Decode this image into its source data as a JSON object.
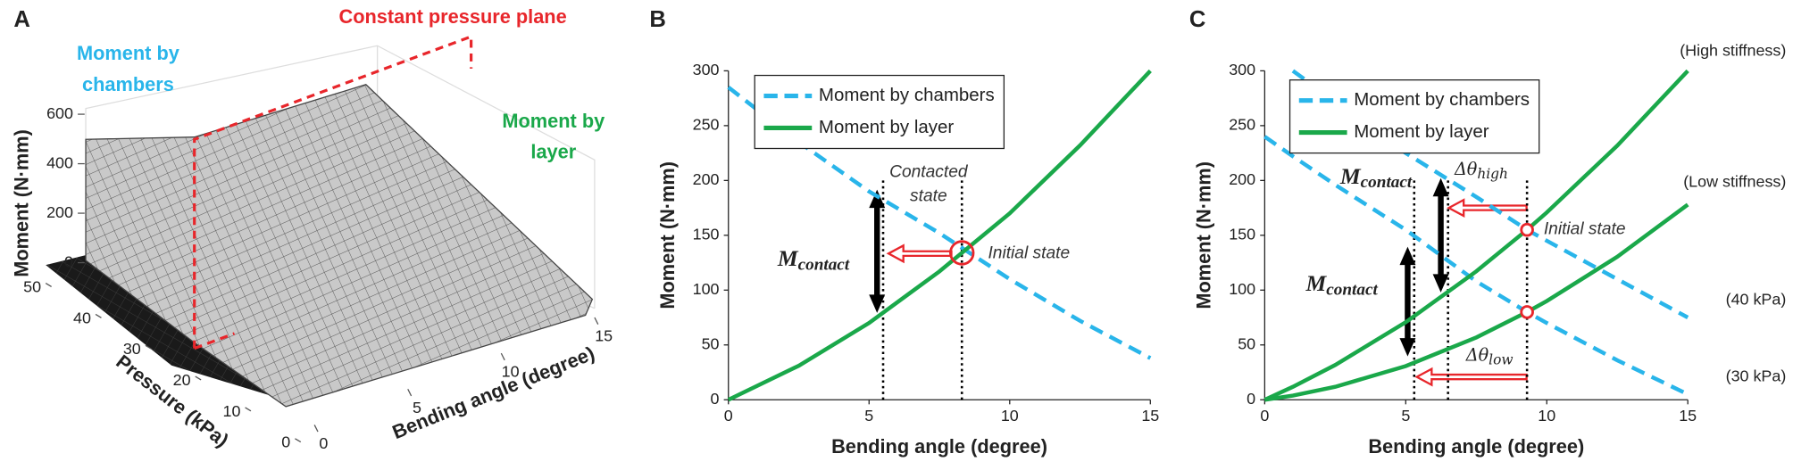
{
  "chart_data": [
    {
      "type": "surface3d",
      "panel": "A",
      "xlabel": "Bending angle (degree)",
      "ylabel": "Pressure (kPa)",
      "zlabel": "Moment (N·mm)",
      "xlim": [
        0,
        15
      ],
      "xticks": [
        0,
        5,
        10,
        15
      ],
      "ylim": [
        0,
        50
      ],
      "yticks": [
        0,
        10,
        20,
        30,
        40,
        50
      ],
      "zlim": [
        0,
        600
      ],
      "zticks": [
        0,
        200,
        400,
        600
      ],
      "annotations": [
        {
          "lines": [
            "Constant pressure plane"
          ],
          "color": "#e8262b"
        },
        {
          "lines": [
            "Moment by",
            "chambers"
          ],
          "color": "#29b5ea"
        },
        {
          "lines": [
            "Moment by",
            "layer"
          ],
          "color": "#1aa84a"
        }
      ]
    },
    {
      "type": "line",
      "panel": "B",
      "xlabel": "Bending angle (degree)",
      "ylabel": "Moment (N·mm)",
      "x": [
        0,
        2.5,
        5,
        7.5,
        10,
        12.5,
        15
      ],
      "xlim": [
        0,
        15
      ],
      "xticks": [
        0,
        5,
        10,
        15
      ],
      "ylim": [
        0,
        300
      ],
      "yticks": [
        0,
        50,
        100,
        150,
        200,
        250,
        300
      ],
      "series": [
        {
          "name": "Moment by chambers",
          "color": "#29b5ea",
          "dashed": true,
          "values": [
            285,
            235,
            190,
            152,
            110,
            72,
            38
          ]
        },
        {
          "name": "Moment by layer",
          "color": "#1aa84a",
          "dashed": false,
          "values": [
            0,
            31,
            70,
            117,
            170,
            232,
            300
          ]
        }
      ],
      "reference_x": [
        5.5,
        8.3
      ],
      "markers": [
        {
          "x": 8.3,
          "y": 134
        }
      ],
      "annotations": [
        "Contacted",
        "state",
        "Initial state"
      ],
      "math_labels": [
        {
          "symbol": "M",
          "subscript": "contact"
        }
      ]
    },
    {
      "type": "line",
      "panel": "C",
      "xlabel": "Bending angle (degree)",
      "ylabel": "Moment (N·mm)",
      "x": [
        0,
        1,
        2.5,
        5,
        7.5,
        9.3,
        10,
        12.5,
        15
      ],
      "xlim": [
        0,
        15
      ],
      "xticks": [
        0,
        5,
        10,
        15
      ],
      "ylim": [
        0,
        300
      ],
      "yticks": [
        0,
        50,
        100,
        150,
        200,
        250,
        300
      ],
      "series": [
        {
          "name": "Moment by chambers",
          "label": "(40 kPa)",
          "color": "#29b5ea",
          "dashed": true,
          "values": [
            null,
            300,
            272,
            225,
            185,
            155,
            145,
            110,
            75
          ]
        },
        {
          "name": "Moment by chambers",
          "label": "(30 kPa)",
          "color": "#29b5ea",
          "dashed": true,
          "values": [
            240,
            222,
            196,
            155,
            108,
            80,
            70,
            36,
            5
          ]
        },
        {
          "name": "Moment by layer",
          "label": "(High stiffness)",
          "color": "#1aa84a",
          "dashed": false,
          "values": [
            0,
            11.8,
            31.7,
            70.7,
            117.1,
            155,
            170.8,
            231.8,
            300
          ]
        },
        {
          "name": "Moment by layer",
          "label": "(Low stiffness)",
          "color": "#1aa84a",
          "dashed": false,
          "values": [
            0,
            3.8,
            11.8,
            30.7,
            56.8,
            80,
            90,
            130.4,
            178
          ]
        }
      ],
      "reference_x": [
        5.3,
        6.5,
        9.3
      ],
      "markers": [
        {
          "x": 9.3,
          "y": 155
        },
        {
          "x": 9.3,
          "y": 80
        }
      ],
      "annotations": [
        "Initial state"
      ],
      "math_labels": [
        {
          "symbol": "M",
          "subscript": "contact"
        },
        {
          "symbol": "M",
          "subscript": "contact"
        },
        {
          "symbol": "Δθ",
          "subscript": "high"
        },
        {
          "symbol": "Δθ",
          "subscript": "low"
        }
      ]
    }
  ]
}
